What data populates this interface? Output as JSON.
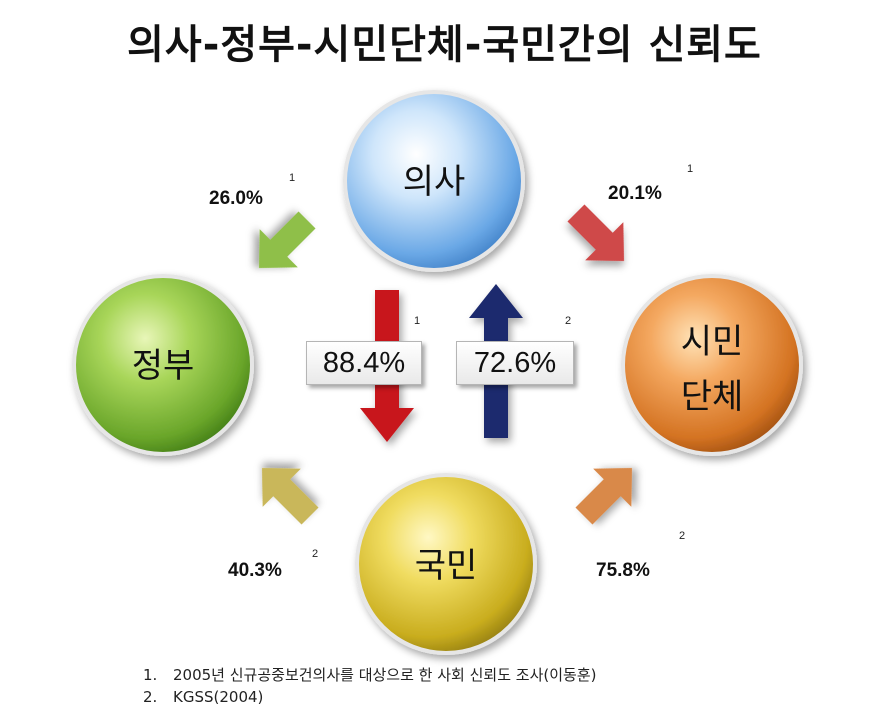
{
  "title": "의사-정부-시민단체-국민간의   신뢰도",
  "nodes": {
    "doctor": "의사",
    "government": "정부",
    "civic_line1": "시민",
    "civic_line2": "단체",
    "public": "국민"
  },
  "edges": {
    "doctor_to_government": {
      "value": "26.0%",
      "ref": "1"
    },
    "doctor_to_civic": {
      "value": "20.1%",
      "ref": "1"
    },
    "doctor_to_public": {
      "value": "88.4%",
      "ref": "1"
    },
    "public_to_doctor": {
      "value": "72.6%",
      "ref": "2"
    },
    "public_to_government": {
      "value": "40.3%",
      "ref": "2"
    },
    "public_to_civic": {
      "value": "75.8%",
      "ref": "2"
    }
  },
  "footnotes": [
    {
      "num": "1.",
      "text": "2005년 신규공중보건의사를 대상으로 한 사회 신뢰도 조사(이동훈)"
    },
    {
      "num": "2.",
      "text": "KGSS(2004)"
    }
  ],
  "colors": {
    "doctor_node": "#7fb9f0",
    "government_node": "#8cc63f",
    "civic_node": "#e07e2a",
    "public_node": "#e0c92a",
    "arrow_gov_green": "#8fbf4a",
    "arrow_civic_red": "#cf4a4a",
    "arrow_down_red": "#c8161b",
    "arrow_up_navy": "#1f2c6e",
    "arrow_gov_olive": "#c9b75a",
    "arrow_civic_orange": "#d9894a"
  }
}
